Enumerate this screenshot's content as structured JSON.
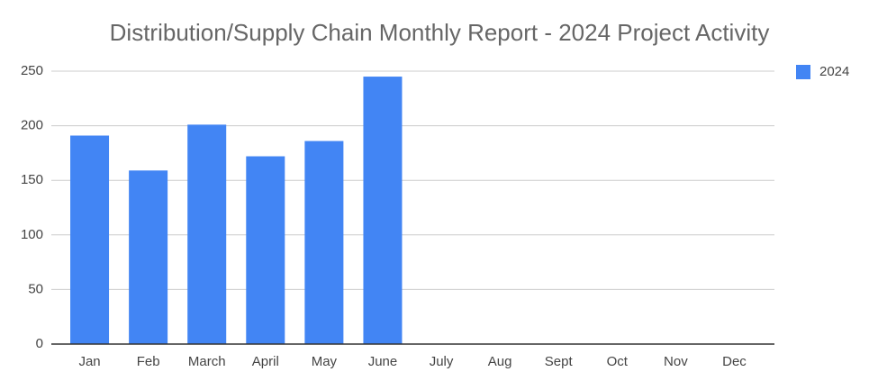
{
  "chart_data": {
    "type": "bar",
    "title": "Distribution/Supply Chain Monthly Report - 2024 Project Activity",
    "categories": [
      "Jan",
      "Feb",
      "March",
      "April",
      "May",
      "June",
      "July",
      "Aug",
      "Sept",
      "Oct",
      "Nov",
      "Dec"
    ],
    "series": [
      {
        "name": "2024",
        "color": "#4285f4",
        "values": [
          191,
          159,
          201,
          172,
          186,
          245,
          null,
          null,
          null,
          null,
          null,
          null
        ]
      }
    ],
    "ylim": [
      0,
      250
    ],
    "yticks": [
      0,
      50,
      100,
      150,
      200,
      250
    ],
    "grid": true,
    "legend": "right"
  }
}
